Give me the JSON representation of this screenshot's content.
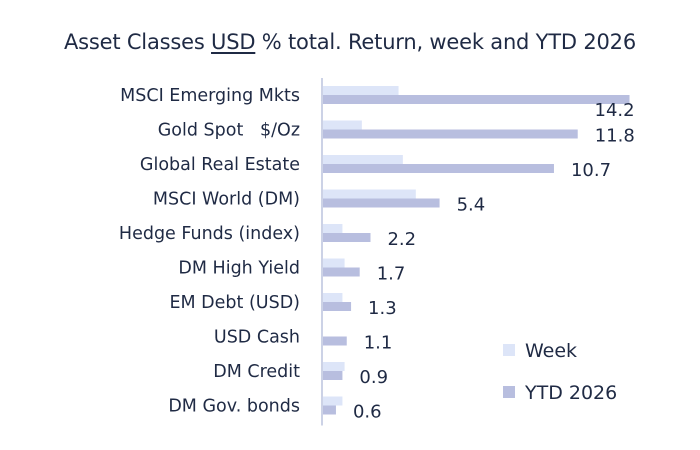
{
  "title": {
    "before": "Asset Classes ",
    "underlined": "USD",
    "after": " % total. Return, week and YTD 2026"
  },
  "colors": {
    "week": "#dde5f8",
    "ytd": "#b8bedf",
    "axis": "#bcc4de",
    "text": "#1f2a44"
  },
  "chart_data": {
    "type": "bar",
    "orientation": "horizontal",
    "categories": [
      "MSCI Emerging Mkts",
      "Gold Spot   $/Oz",
      "Global Real Estate",
      "MSCI World (DM)",
      "Hedge Funds (index)",
      "DM High Yield",
      "EM Debt (USD)",
      "USD Cash",
      "DM Credit",
      "DM Gov. bonds"
    ],
    "series": [
      {
        "name": "Week",
        "values": [
          3.5,
          1.8,
          3.7,
          4.3,
          0.9,
          1.0,
          0.9,
          0.0,
          1.0,
          0.9
        ]
      },
      {
        "name": "YTD 2026",
        "values": [
          14.2,
          11.8,
          10.7,
          5.4,
          2.2,
          1.7,
          1.3,
          1.1,
          0.9,
          0.6
        ]
      }
    ],
    "data_labels": [
      "14.2",
      "11.8",
      "10.7",
      "5.4",
      "2.2",
      "1.7",
      "1.3",
      "1.1",
      "0.9",
      "0.6"
    ],
    "xlim": [
      0,
      14.5
    ],
    "grid": false,
    "legend_position": "bottom-right",
    "legend": [
      "Week",
      "YTD 2026"
    ]
  }
}
